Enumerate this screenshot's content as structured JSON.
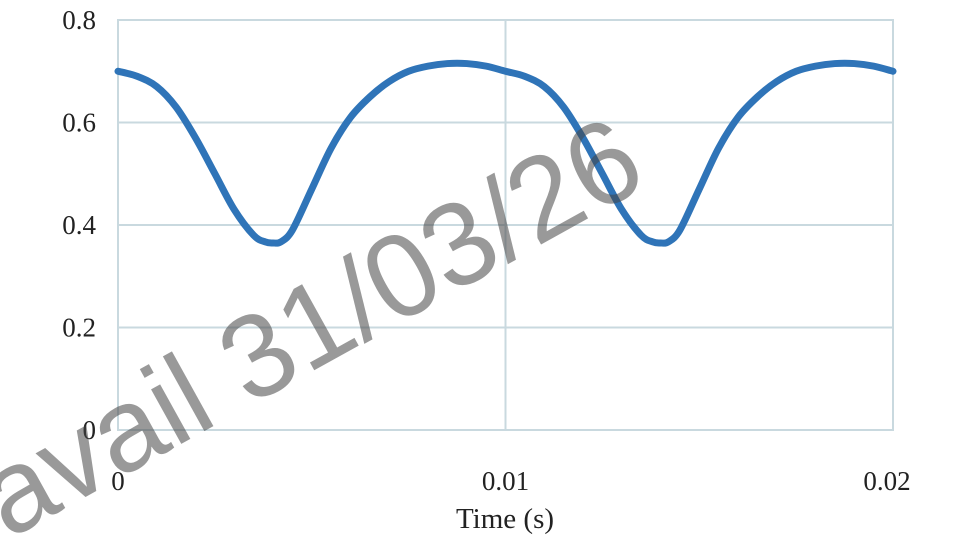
{
  "chart_data": {
    "type": "line",
    "xlabel": "Time (s)",
    "ylabel": "",
    "xlim": [
      0,
      0.02
    ],
    "ylim": [
      0,
      0.8
    ],
    "x_ticks": [
      0,
      0.01,
      0.02
    ],
    "x_tick_labels": [
      "0",
      "0.01",
      "0.02"
    ],
    "y_ticks": [
      0,
      0.2,
      0.4,
      0.6,
      0.8
    ],
    "y_tick_labels": [
      "0",
      "0.2",
      "0.4",
      "0.6",
      "0.8"
    ],
    "grid": true,
    "series": [
      {
        "color": "#2f74b8",
        "x": [
          0,
          0.0005,
          0.001,
          0.0015,
          0.002,
          0.0025,
          0.003,
          0.0035,
          0.0038,
          0.004,
          0.0042,
          0.0045,
          0.005,
          0.0055,
          0.006,
          0.0065,
          0.007,
          0.0075,
          0.008,
          0.0085,
          0.009,
          0.0095,
          0.01,
          0.0105,
          0.011,
          0.0115,
          0.012,
          0.0125,
          0.013,
          0.0135,
          0.0138,
          0.014,
          0.0142,
          0.0145,
          0.015,
          0.0155,
          0.016,
          0.0165,
          0.017,
          0.0175,
          0.018,
          0.0185,
          0.019,
          0.0195,
          0.02
        ],
        "y": [
          0.7,
          0.69,
          0.67,
          0.63,
          0.57,
          0.5,
          0.43,
          0.38,
          0.367,
          0.365,
          0.367,
          0.39,
          0.47,
          0.55,
          0.61,
          0.65,
          0.68,
          0.7,
          0.71,
          0.715,
          0.715,
          0.71,
          0.7,
          0.69,
          0.67,
          0.63,
          0.57,
          0.5,
          0.43,
          0.38,
          0.367,
          0.365,
          0.367,
          0.39,
          0.47,
          0.55,
          0.61,
          0.65,
          0.68,
          0.7,
          0.71,
          0.715,
          0.715,
          0.71,
          0.7
        ]
      }
    ]
  },
  "watermark": {
    "text": "avail 31/03/26",
    "color": "#464646"
  }
}
